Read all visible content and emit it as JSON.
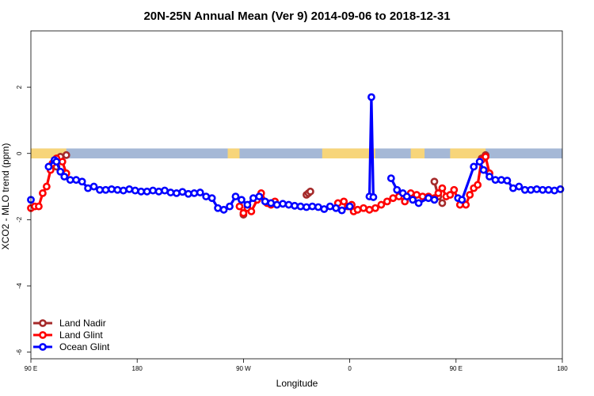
{
  "chart_data": {
    "type": "line",
    "title": "20N-25N Annual Mean (Ver 9)   2014-09-06 to 2018-12-31",
    "xlabel": "Longitude",
    "ylabel": "XCO2 - MLO trend (ppm)",
    "xlim": [
      -90,
      180
    ],
    "ylim": [
      -6.2,
      3.7
    ],
    "x_ticks": [
      {
        "value": -90,
        "label": "90 E"
      },
      {
        "value": -36,
        "label": "180"
      },
      {
        "value": 18,
        "label": "90 W"
      },
      {
        "value": 72,
        "label": "0"
      },
      {
        "value": 126,
        "label": "90 E"
      },
      {
        "value": 180,
        "label": "180"
      }
    ],
    "y_ticks": [
      2,
      0,
      -2,
      -4,
      -6
    ],
    "reference_line": 0,
    "land_ocean_band": {
      "y_min": -0.15,
      "y_max": 0.15,
      "ocean_color": "#a5b8d6",
      "land_color": "#f7d57a"
    },
    "series": [
      {
        "name": "Land Nadir",
        "color": "#a52a2a",
        "points": [
          [
            -77,
            -0.4
          ],
          [
            -75,
            -0.1
          ],
          [
            -72,
            -0.05
          ],
          [
            18,
            -1.85
          ],
          [
            50,
            -1.25
          ],
          [
            51,
            -1.2
          ],
          [
            52,
            -1.15
          ],
          [
            115,
            -0.85
          ],
          [
            117,
            -1.3
          ],
          [
            119,
            -1.5
          ],
          [
            139,
            -0.15
          ],
          [
            141,
            -0.05
          ]
        ]
      },
      {
        "name": "Land Glint",
        "color": "#ff0000",
        "points": [
          [
            -90,
            -1.65
          ],
          [
            -88,
            -1.6
          ],
          [
            -86,
            -1.6
          ],
          [
            -84,
            -1.2
          ],
          [
            -82,
            -1.0
          ],
          [
            -80,
            -0.5
          ],
          [
            -79,
            -0.3
          ],
          [
            -77,
            -0.15
          ],
          [
            -74,
            -0.25
          ],
          [
            -72,
            -0.6
          ],
          [
            16,
            -1.6
          ],
          [
            18,
            -1.8
          ],
          [
            20,
            -1.65
          ],
          [
            22,
            -1.75
          ],
          [
            25,
            -1.4
          ],
          [
            27,
            -1.2
          ],
          [
            30,
            -1.5
          ],
          [
            32,
            -1.55
          ],
          [
            34,
            -1.45
          ],
          [
            66,
            -1.5
          ],
          [
            69,
            -1.45
          ],
          [
            71,
            -1.6
          ],
          [
            73,
            -1.55
          ],
          [
            74,
            -1.75
          ],
          [
            76,
            -1.7
          ],
          [
            79,
            -1.65
          ],
          [
            82,
            -1.7
          ],
          [
            85,
            -1.65
          ],
          [
            88,
            -1.55
          ],
          [
            91,
            -1.45
          ],
          [
            94,
            -1.35
          ],
          [
            97,
            -1.3
          ],
          [
            100,
            -1.45
          ],
          [
            103,
            -1.2
          ],
          [
            106,
            -1.25
          ],
          [
            109,
            -1.3
          ],
          [
            112,
            -1.3
          ],
          [
            115,
            -1.35
          ],
          [
            117,
            -1.2
          ],
          [
            119,
            -1.05
          ],
          [
            121,
            -1.3
          ],
          [
            123,
            -1.25
          ],
          [
            125,
            -1.1
          ],
          [
            128,
            -1.55
          ],
          [
            131,
            -1.55
          ],
          [
            133,
            -1.25
          ],
          [
            135,
            -1.05
          ],
          [
            137,
            -0.95
          ],
          [
            139,
            -0.2
          ],
          [
            141,
            -0.1
          ],
          [
            143,
            -0.6
          ]
        ]
      },
      {
        "name": "Ocean Glint",
        "color": "#0000ff",
        "points": [
          [
            -90,
            -1.4
          ],
          [
            -81,
            -0.4
          ],
          [
            -78,
            -0.2
          ],
          [
            -77,
            -0.25
          ],
          [
            -75,
            -0.55
          ],
          [
            -73,
            -0.7
          ],
          [
            -70,
            -0.8
          ],
          [
            -67,
            -0.8
          ],
          [
            -64,
            -0.85
          ],
          [
            -61,
            -1.05
          ],
          [
            -58,
            -1.0
          ],
          [
            -55,
            -1.1
          ],
          [
            -52,
            -1.1
          ],
          [
            -49,
            -1.08
          ],
          [
            -46,
            -1.1
          ],
          [
            -43,
            -1.12
          ],
          [
            -40,
            -1.08
          ],
          [
            -37,
            -1.12
          ],
          [
            -34,
            -1.15
          ],
          [
            -31,
            -1.15
          ],
          [
            -28,
            -1.12
          ],
          [
            -25,
            -1.15
          ],
          [
            -22,
            -1.12
          ],
          [
            -19,
            -1.18
          ],
          [
            -16,
            -1.2
          ],
          [
            -13,
            -1.16
          ],
          [
            -10,
            -1.22
          ],
          [
            -7,
            -1.2
          ],
          [
            -4,
            -1.18
          ],
          [
            -1,
            -1.3
          ],
          [
            2,
            -1.35
          ],
          [
            5,
            -1.65
          ],
          [
            8,
            -1.7
          ],
          [
            11,
            -1.6
          ],
          [
            14,
            -1.3
          ],
          [
            17,
            -1.4
          ],
          [
            20,
            -1.55
          ],
          [
            23,
            -1.35
          ],
          [
            26,
            -1.3
          ],
          [
            29,
            -1.45
          ],
          [
            32,
            -1.5
          ],
          [
            35,
            -1.55
          ],
          [
            38,
            -1.52
          ],
          [
            41,
            -1.55
          ],
          [
            44,
            -1.58
          ],
          [
            47,
            -1.6
          ],
          [
            50,
            -1.62
          ],
          [
            53,
            -1.6
          ],
          [
            56,
            -1.62
          ],
          [
            59,
            -1.68
          ],
          [
            62,
            -1.6
          ],
          [
            65,
            -1.65
          ],
          [
            68,
            -1.72
          ],
          [
            72,
            -1.6
          ],
          [
            82,
            -1.3
          ],
          [
            83,
            1.7
          ],
          [
            84,
            -1.32
          ],
          [
            93,
            -0.75
          ],
          [
            96,
            -1.1
          ],
          [
            99,
            -1.2
          ],
          [
            101,
            -1.3
          ],
          [
            104,
            -1.4
          ],
          [
            107,
            -1.5
          ],
          [
            112,
            -1.35
          ],
          [
            115,
            -1.4
          ],
          [
            127,
            -1.35
          ],
          [
            129,
            -1.4
          ],
          [
            135,
            -0.4
          ],
          [
            138,
            -0.25
          ],
          [
            140,
            -0.5
          ],
          [
            143,
            -0.7
          ],
          [
            146,
            -0.8
          ],
          [
            149,
            -0.8
          ],
          [
            152,
            -0.82
          ],
          [
            155,
            -1.05
          ],
          [
            158,
            -1.0
          ],
          [
            161,
            -1.1
          ],
          [
            164,
            -1.1
          ],
          [
            167,
            -1.08
          ],
          [
            170,
            -1.1
          ],
          [
            173,
            -1.1
          ],
          [
            176,
            -1.12
          ],
          [
            179,
            -1.08
          ]
        ]
      }
    ],
    "legend": {
      "position": "bottom-left",
      "entries": [
        {
          "label": "Land Nadir",
          "color": "#a52a2a"
        },
        {
          "label": "Land Glint",
          "color": "#ff0000"
        },
        {
          "label": "Ocean Glint",
          "color": "#0000ff"
        }
      ]
    }
  }
}
